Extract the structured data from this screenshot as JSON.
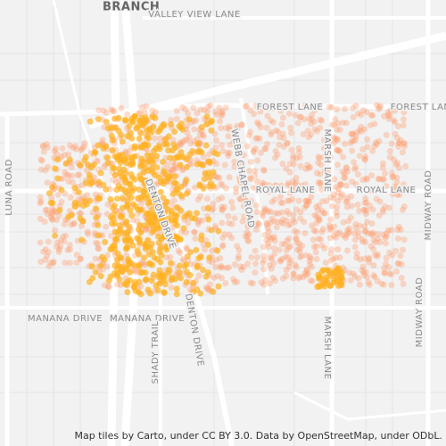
{
  "map": {
    "labels": [
      "BRANCH",
      "VALLEY VIEW LANE",
      "FOREST LANE",
      "FOREST LANE",
      "ROYAL LANE",
      "ROYAL LANE",
      "WEBB CHAPEL ROAD",
      "MARSH LANE",
      "MARSH LANE",
      "MIDWAY ROAD",
      "MIDWAY ROAD",
      "LUNA ROAD",
      "MANANA DRIVE",
      "MANANA DRIVE",
      "SHADY TRAIL",
      "DENTON DRIVE",
      "DENTON DRIVE"
    ],
    "attribution": "Map tiles by Carto, under CC BY 3.0. Data by OpenStreetMap, under ODbL."
  }
}
